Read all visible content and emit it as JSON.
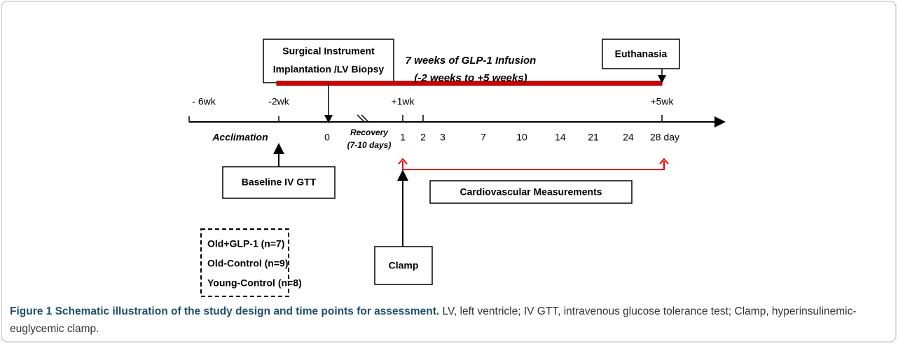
{
  "timeline": {
    "surgery_box": [
      "Surgical Instrument",
      "Implantation /LV Biopsy"
    ],
    "infusion_label": [
      "7 weeks of GLP-1 Infusion",
      "(-2 weeks to +5 weeks)"
    ],
    "euthanasia_box": "Euthanasia",
    "week_labels": [
      "- 6wk",
      "-2wk",
      "+1wk",
      "+5wk"
    ],
    "phase_label": "Acclimation",
    "recovery_label": [
      "Recovery",
      "(7-10 days)"
    ],
    "day_labels": [
      "0",
      "1",
      "2",
      "3",
      "7",
      "10",
      "14",
      "21",
      "24",
      "28 day"
    ],
    "baseline_box": "Baseline IV GTT",
    "cardio_box": "Cardiovascular Measurements",
    "clamp_box": "Clamp",
    "groups": [
      "Old+GLP-1 (n=7)",
      "Old-Control (n=9)",
      "Young-Control (n=8)"
    ]
  },
  "caption": {
    "title": "Figure 1 Schematic illustration of the study design and time points for assessment.",
    "text": "LV, left ventricle; IV GTT, intravenous glucose tolerance test; Clamp, hyperinsulinemic-euglycemic clamp."
  }
}
